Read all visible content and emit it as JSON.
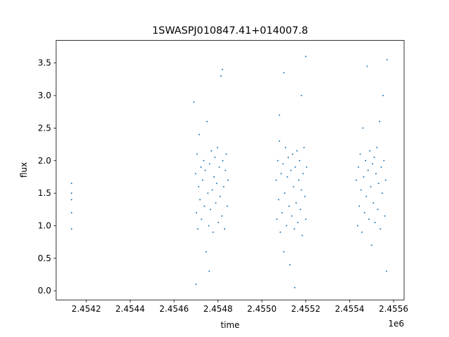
{
  "chart_data": {
    "type": "scatter",
    "title": "1SWASPJ010847.41+014007.8",
    "x_label": "time",
    "y_label": "flux",
    "x_offset_label": "1e6",
    "color": "#1f77b4",
    "xlim": [
      2454062.6,
      2455648
    ],
    "ylim": [
      -0.14,
      3.846
    ],
    "xticks": [
      {
        "value": 2454200,
        "label": "2.4542"
      },
      {
        "value": 2454400,
        "label": "2.4544"
      },
      {
        "value": 2454600,
        "label": "2.4546"
      },
      {
        "value": 2454800,
        "label": "2.4548"
      },
      {
        "value": 2455000,
        "label": "2.4550"
      },
      {
        "value": 2455200,
        "label": "2.4552"
      },
      {
        "value": 2455400,
        "label": "2.4554"
      },
      {
        "value": 2455600,
        "label": "2.4556"
      }
    ],
    "yticks": [
      {
        "value": 0,
        "label": "0.0"
      },
      0.5,
      {
        "value": 1,
        "label": "1.0"
      },
      1.5,
      {
        "value": 2,
        "label": "2.0"
      },
      2.5,
      {
        "value": 3,
        "label": "3.0"
      },
      3.5
    ],
    "x": [
      2454133,
      2454133,
      2454133,
      2454133,
      2454133,
      2454698,
      2454702,
      2454705,
      2454708,
      2454712,
      2454715,
      2454718,
      2454722,
      2454725,
      2454730,
      2454735,
      2454738,
      2454742,
      2454746,
      2454750,
      2454754,
      2454758,
      2454762,
      2454766,
      2454770,
      2454774,
      2454778,
      2454782,
      2454786,
      2454790,
      2454794,
      2454798,
      2454802,
      2454806,
      2454810,
      2454814,
      2454818,
      2454822,
      2454826,
      2454830,
      2454834,
      2454838,
      2454842,
      2454846,
      2454700,
      2454760,
      2454820,
      2454690,
      2455065,
      2455068,
      2455072,
      2455076,
      2455080,
      2455084,
      2455088,
      2455092,
      2455096,
      2455100,
      2455104,
      2455108,
      2455112,
      2455116,
      2455120,
      2455124,
      2455128,
      2455132,
      2455136,
      2455140,
      2455144,
      2455148,
      2455152,
      2455156,
      2455160,
      2455164,
      2455168,
      2455172,
      2455176,
      2455180,
      2455184,
      2455188,
      2455192,
      2455196,
      2455200,
      2455204,
      2455100,
      2455200,
      2455150,
      2455080,
      2455180,
      2455430,
      2455436,
      2455440,
      2455444,
      2455448,
      2455452,
      2455456,
      2455460,
      2455464,
      2455468,
      2455472,
      2455476,
      2455480,
      2455484,
      2455488,
      2455492,
      2455496,
      2455500,
      2455504,
      2455508,
      2455512,
      2455516,
      2455520,
      2455524,
      2455528,
      2455532,
      2455536,
      2455540,
      2455544,
      2455548,
      2455552,
      2455556,
      2455560,
      2455564,
      2455568,
      2455570
    ],
    "values": [
      0.95,
      1.2,
      1.5,
      1.65,
      1.4,
      1.8,
      1.2,
      2.1,
      0.95,
      1.6,
      2.4,
      1.4,
      1.9,
      1.1,
      1.7,
      2.0,
      1.3,
      1.85,
      0.6,
      2.6,
      1.5,
      1.0,
      1.95,
      1.25,
      2.15,
      1.55,
      0.9,
      1.75,
      2.05,
      1.35,
      1.65,
      2.2,
      1.05,
      1.9,
      1.45,
      3.3,
      1.15,
      2.0,
      1.6,
      0.95,
      1.85,
      2.1,
      1.3,
      1.7,
      0.1,
      0.3,
      3.4,
      2.9,
      1.7,
      1.1,
      2.0,
      1.4,
      2.3,
      0.9,
      1.8,
      1.2,
      1.95,
      0.6,
      1.5,
      2.2,
      1.0,
      1.75,
      2.05,
      1.3,
      0.4,
      1.85,
      1.15,
      2.1,
      1.6,
      0.95,
      1.9,
      1.35,
      2.15,
      1.05,
      1.7,
      2.0,
      1.25,
      1.55,
      0.85,
      1.8,
      2.2,
      1.45,
      1.1,
      1.9,
      3.35,
      3.6,
      0.05,
      2.7,
      3.0,
      1.7,
      1.0,
      1.9,
      1.3,
      2.1,
      1.55,
      0.9,
      2.5,
      1.75,
      1.2,
      2.0,
      1.45,
      3.45,
      1.85,
      1.1,
      2.15,
      1.6,
      0.7,
      1.95,
      1.35,
      2.05,
      1.05,
      1.8,
      2.2,
      1.25,
      1.65,
      2.6,
      0.95,
      1.9,
      1.5,
      3.0,
      2.0,
      1.15,
      1.7,
      0.3,
      3.55
    ]
  }
}
